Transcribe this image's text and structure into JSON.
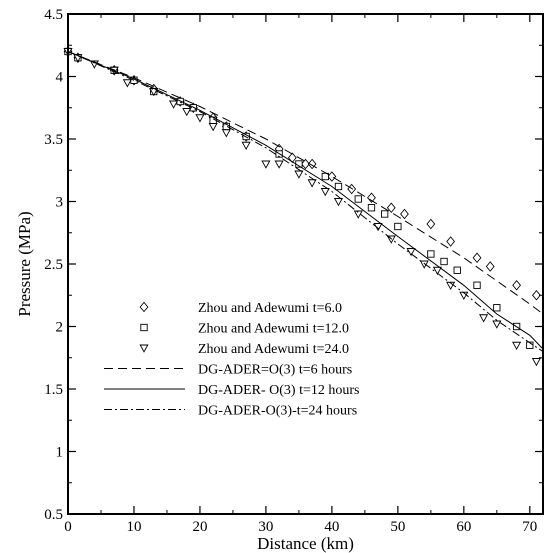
{
  "chart_data": {
    "type": "scatter",
    "title": "",
    "xlabel": "Distance (km)",
    "ylabel": "Pressure (MPa)",
    "xlim": [
      0,
      72
    ],
    "ylim": [
      0.5,
      4.5
    ],
    "x_ticks": [
      0,
      10,
      20,
      30,
      40,
      50,
      60,
      70
    ],
    "y_ticks": [
      0.5,
      1,
      1.5,
      2,
      2.5,
      3,
      3.5,
      4,
      4.5
    ],
    "y_tick_labels": [
      "0.5",
      "1",
      "1.5",
      "2",
      "2.5",
      "3",
      "3.5",
      "4",
      "4.5"
    ],
    "grid": false,
    "legend_position": "lower-left",
    "series": [
      {
        "name": "Zhou and Adewumi t=6.0",
        "kind": "markers",
        "marker": "diamond",
        "x": [
          0,
          1.5,
          7,
          10,
          13,
          17,
          19,
          22,
          24,
          27,
          32,
          34,
          36,
          37,
          40,
          43,
          46,
          49,
          51,
          55,
          58,
          62,
          64,
          68,
          71
        ],
        "y": [
          4.2,
          4.15,
          4.05,
          3.97,
          3.9,
          3.8,
          3.75,
          3.67,
          3.6,
          3.52,
          3.42,
          3.35,
          3.3,
          3.3,
          3.2,
          3.1,
          3.03,
          2.95,
          2.9,
          2.82,
          2.68,
          2.55,
          2.48,
          2.33,
          2.25
        ]
      },
      {
        "name": "Zhou and Adewumi t=12.0",
        "kind": "markers",
        "marker": "square",
        "x": [
          0,
          1.5,
          7,
          10,
          13,
          17,
          19,
          22,
          24,
          27,
          32,
          35,
          39,
          41,
          44,
          46,
          48,
          50,
          55,
          57,
          59,
          62,
          65,
          68,
          70
        ],
        "y": [
          4.2,
          4.15,
          4.05,
          3.97,
          3.88,
          3.8,
          3.75,
          3.65,
          3.6,
          3.52,
          3.38,
          3.3,
          3.2,
          3.12,
          3.02,
          2.95,
          2.9,
          2.8,
          2.58,
          2.52,
          2.45,
          2.33,
          2.15,
          2.0,
          1.85
        ]
      },
      {
        "name": "Zhou and Adewumi t=24.0",
        "kind": "markers",
        "marker": "triangle-down",
        "x": [
          0,
          1.5,
          4,
          7,
          9,
          13,
          16,
          18,
          20,
          22,
          24,
          27,
          30,
          32,
          35,
          37,
          39,
          41,
          44,
          47,
          49,
          52,
          54,
          56,
          58,
          60,
          63,
          65,
          68,
          71
        ],
        "y": [
          4.2,
          4.15,
          4.1,
          4.05,
          3.95,
          3.88,
          3.78,
          3.72,
          3.67,
          3.6,
          3.55,
          3.45,
          3.3,
          3.3,
          3.22,
          3.15,
          3.08,
          3.0,
          2.9,
          2.8,
          2.7,
          2.6,
          2.5,
          2.45,
          2.33,
          2.25,
          2.07,
          2.02,
          1.85,
          1.72
        ]
      },
      {
        "name": "DG-ADER=O(3) t=6 hours",
        "kind": "line",
        "dash": "dashed",
        "x": [
          0,
          10,
          20,
          30,
          40,
          50,
          60,
          70,
          72
        ],
        "y": [
          4.2,
          3.99,
          3.76,
          3.5,
          3.2,
          2.88,
          2.55,
          2.18,
          2.1
        ]
      },
      {
        "name": "DG-ADER- O(3) t=12 hours",
        "kind": "line",
        "dash": "solid",
        "x": [
          0,
          10,
          20,
          30,
          40,
          50,
          60,
          65,
          70,
          72
        ],
        "y": [
          4.2,
          3.98,
          3.73,
          3.45,
          3.12,
          2.72,
          2.33,
          2.1,
          1.93,
          1.82
        ]
      },
      {
        "name": "DG-ADER-O(3)-t=24 hours",
        "kind": "line",
        "dash": "dashdot",
        "x": [
          0,
          10,
          20,
          30,
          40,
          50,
          60,
          65,
          70,
          72
        ],
        "y": [
          4.2,
          3.97,
          3.72,
          3.43,
          3.08,
          2.66,
          2.27,
          2.05,
          1.87,
          1.8
        ]
      }
    ]
  }
}
